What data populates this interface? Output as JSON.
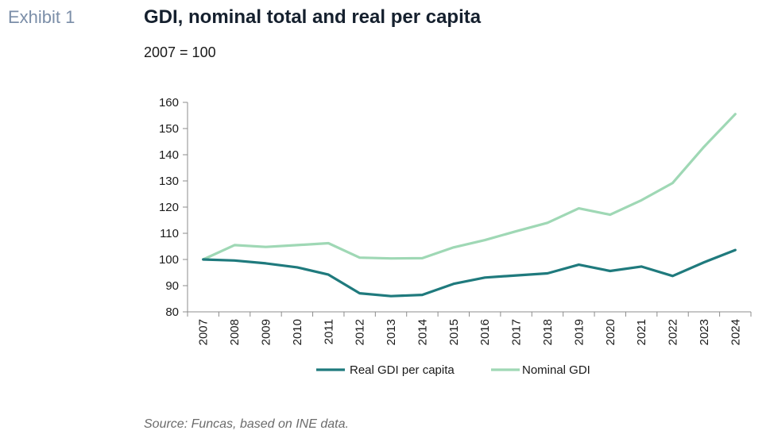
{
  "header": {
    "exhibit": "Exhibit 1",
    "title": "GDI, nominal total and real per capita",
    "subtitle": "2007 = 100"
  },
  "footer": {
    "source": "Source: Funcas, based on INE data."
  },
  "chart_data": {
    "type": "line",
    "title": "GDI, nominal total and real per capita",
    "subtitle": "2007 = 100",
    "xlabel": "",
    "ylabel": "",
    "categories": [
      "2007",
      "2008",
      "2009",
      "2010",
      "2011",
      "2012",
      "2013",
      "2014",
      "2015",
      "2016",
      "2017",
      "2018",
      "2019",
      "2020",
      "2021",
      "2022",
      "2023",
      "2024"
    ],
    "ylim": [
      80,
      160
    ],
    "yticks": [
      80,
      90,
      100,
      110,
      120,
      130,
      140,
      150,
      160
    ],
    "grid": false,
    "legend_position": "bottom",
    "series": [
      {
        "name": "Real GDI per capita",
        "color": "#1f7a7d",
        "values": [
          100,
          99.6,
          98.5,
          97,
          94.2,
          87.1,
          86,
          86.5,
          90.7,
          93.1,
          93.9,
          94.7,
          98,
          95.6,
          97.3,
          93.7,
          98.9,
          103.6
        ]
      },
      {
        "name": "Nominal GDI",
        "color": "#9fd8b5",
        "values": [
          100,
          105.5,
          104.8,
          105.5,
          106.2,
          100.7,
          100.4,
          100.5,
          104.6,
          107.4,
          110.8,
          114,
          119.5,
          117.1,
          122.6,
          129.2,
          143,
          155.5
        ]
      }
    ]
  }
}
